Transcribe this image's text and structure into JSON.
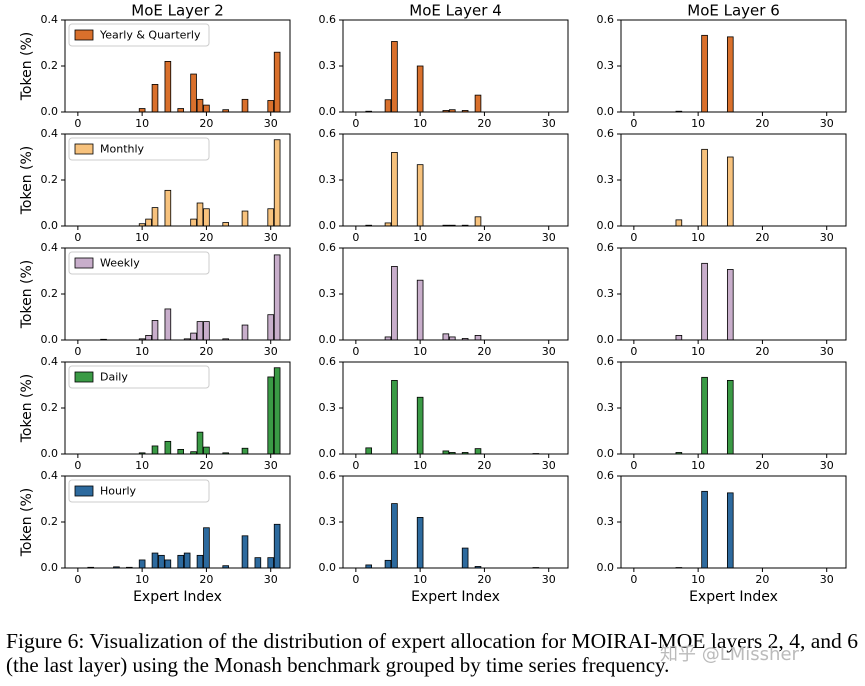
{
  "chart_data": [
    {
      "type": "bar",
      "title": "MoE Layer 2",
      "ylabel": "Token (%)",
      "x": [
        10,
        12,
        14,
        16,
        18,
        19,
        20,
        23,
        26,
        30,
        31
      ],
      "series": [
        {
          "name": "Yearly & Quarterly",
          "color": "#d9702c",
          "values": [
            0.015,
            0.12,
            0.22,
            0.015,
            0.165,
            0.055,
            0.03,
            0.01,
            0.055,
            0.05,
            0.26
          ]
        }
      ],
      "xlim": [
        -2,
        33
      ],
      "xticks": [
        0,
        10,
        20,
        30
      ],
      "ylim": [
        0,
        0.4
      ],
      "yticks": [
        {
          "value": 0,
          "label": "0.0"
        },
        0.2,
        0.4
      ]
    },
    {
      "type": "bar",
      "title": "MoE Layer 4",
      "x": [
        2,
        5,
        6,
        10,
        14,
        15,
        17,
        19
      ],
      "series": [
        {
          "color": "#d9702c",
          "values": [
            0.005,
            0.08,
            0.46,
            0.3,
            0.01,
            0.015,
            0.01,
            0.11
          ]
        }
      ],
      "xlim": [
        -2,
        33
      ],
      "xticks": [
        0,
        10,
        20,
        30
      ],
      "ylim": [
        0,
        0.6
      ],
      "yticks": [
        {
          "value": 0,
          "label": "0.0"
        },
        0.3,
        0.6
      ]
    },
    {
      "type": "bar",
      "title": "MoE Layer 6",
      "x": [
        7,
        11,
        15
      ],
      "series": [
        {
          "color": "#d9702c",
          "values": [
            0.005,
            0.5,
            0.49
          ]
        }
      ],
      "xlim": [
        -2,
        33
      ],
      "xticks": [
        0,
        10,
        20,
        30
      ],
      "ylim": [
        0,
        0.6
      ],
      "yticks": [
        {
          "value": 0,
          "label": "0.0"
        },
        0.3,
        0.6
      ]
    },
    {
      "type": "bar",
      "ylabel": "Token (%)",
      "x": [
        10,
        11,
        12,
        14,
        18,
        19,
        20,
        23,
        26,
        30,
        31
      ],
      "series": [
        {
          "name": "Monthly",
          "color": "#f7c27d",
          "values": [
            0.01,
            0.03,
            0.08,
            0.155,
            0.03,
            0.1,
            0.075,
            0.015,
            0.065,
            0.075,
            0.375
          ]
        }
      ],
      "xlim": [
        -2,
        33
      ],
      "xticks": [
        0,
        10,
        20,
        30
      ],
      "ylim": [
        0,
        0.4
      ],
      "yticks": [
        {
          "value": 0,
          "label": "0.0"
        },
        0.2,
        0.4
      ]
    },
    {
      "type": "bar",
      "x": [
        2,
        5,
        6,
        10,
        14,
        15,
        17,
        19
      ],
      "series": [
        {
          "color": "#f7c27d",
          "values": [
            0.005,
            0.02,
            0.48,
            0.4,
            0.005,
            0.005,
            0.005,
            0.06
          ]
        }
      ],
      "xlim": [
        -2,
        33
      ],
      "xticks": [
        0,
        10,
        20,
        30
      ],
      "ylim": [
        0,
        0.6
      ],
      "yticks": [
        {
          "value": 0,
          "label": "0.0"
        },
        0.3,
        0.6
      ]
    },
    {
      "type": "bar",
      "x": [
        7,
        11,
        15
      ],
      "series": [
        {
          "color": "#f7c27d",
          "values": [
            0.04,
            0.5,
            0.45
          ]
        }
      ],
      "xlim": [
        -2,
        33
      ],
      "xticks": [
        0,
        10,
        20,
        30
      ],
      "ylim": [
        0,
        0.6
      ],
      "yticks": [
        {
          "value": 0,
          "label": "0.0"
        },
        0.3,
        0.6
      ]
    },
    {
      "type": "bar",
      "ylabel": "Token (%)",
      "x": [
        4,
        10,
        11,
        12,
        14,
        17,
        18,
        19,
        20,
        23,
        26,
        30,
        31
      ],
      "series": [
        {
          "name": "Weekly",
          "color": "#c8aecb",
          "values": [
            0.003,
            0.005,
            0.02,
            0.085,
            0.135,
            0.005,
            0.03,
            0.08,
            0.08,
            0.005,
            0.065,
            0.11,
            0.37
          ]
        }
      ],
      "xlim": [
        -2,
        33
      ],
      "xticks": [
        0,
        10,
        20,
        30
      ],
      "ylim": [
        0,
        0.4
      ],
      "yticks": [
        {
          "value": 0,
          "label": "0.0"
        },
        0.2,
        0.4
      ]
    },
    {
      "type": "bar",
      "x": [
        5,
        6,
        10,
        14,
        15,
        17,
        19
      ],
      "series": [
        {
          "color": "#c8aecb",
          "values": [
            0.02,
            0.48,
            0.39,
            0.04,
            0.02,
            0.01,
            0.03
          ]
        }
      ],
      "xlim": [
        -2,
        33
      ],
      "xticks": [
        0,
        10,
        20,
        30
      ],
      "ylim": [
        0,
        0.6
      ],
      "yticks": [
        {
          "value": 0,
          "label": "0.0"
        },
        0.3,
        0.6
      ]
    },
    {
      "type": "bar",
      "x": [
        7,
        11,
        15
      ],
      "series": [
        {
          "color": "#c8aecb",
          "values": [
            0.03,
            0.5,
            0.46
          ]
        }
      ],
      "xlim": [
        -2,
        33
      ],
      "xticks": [
        0,
        10,
        20,
        30
      ],
      "ylim": [
        0,
        0.6
      ],
      "yticks": [
        {
          "value": 0,
          "label": "0.0"
        },
        0.3,
        0.6
      ]
    },
    {
      "type": "bar",
      "ylabel": "Token (%)",
      "x": [
        10,
        12,
        14,
        16,
        18,
        19,
        20,
        23,
        26,
        30,
        31
      ],
      "series": [
        {
          "name": "Daily",
          "color": "#3a9a45",
          "values": [
            0.005,
            0.035,
            0.055,
            0.02,
            0.01,
            0.095,
            0.03,
            0.005,
            0.025,
            0.335,
            0.375
          ]
        }
      ],
      "xlim": [
        -2,
        33
      ],
      "xticks": [
        0,
        10,
        20,
        30
      ],
      "ylim": [
        0,
        0.4
      ],
      "yticks": [
        {
          "value": 0,
          "label": "0.0"
        },
        0.2,
        0.4
      ]
    },
    {
      "type": "bar",
      "x": [
        2,
        6,
        10,
        14,
        15,
        17,
        19,
        28
      ],
      "series": [
        {
          "color": "#3a9a45",
          "values": [
            0.04,
            0.48,
            0.37,
            0.02,
            0.01,
            0.01,
            0.035,
            0.003
          ]
        }
      ],
      "xlim": [
        -2,
        33
      ],
      "xticks": [
        0,
        10,
        20,
        30
      ],
      "ylim": [
        0,
        0.6
      ],
      "yticks": [
        {
          "value": 0,
          "label": "0.0"
        },
        0.3,
        0.6
      ]
    },
    {
      "type": "bar",
      "x": [
        7,
        11,
        15
      ],
      "series": [
        {
          "color": "#3a9a45",
          "values": [
            0.01,
            0.5,
            0.48
          ]
        }
      ],
      "xlim": [
        -2,
        33
      ],
      "xticks": [
        0,
        10,
        20,
        30
      ],
      "ylim": [
        0,
        0.6
      ],
      "yticks": [
        {
          "value": 0,
          "label": "0.0"
        },
        0.3,
        0.6
      ]
    },
    {
      "type": "bar",
      "ylabel": "Token (%)",
      "xlabel": "Expert Index",
      "x": [
        2,
        6,
        8,
        10,
        12,
        13,
        14,
        16,
        17,
        19,
        20,
        23,
        26,
        28,
        30,
        31
      ],
      "series": [
        {
          "name": "Hourly",
          "color": "#2d6a9e",
          "values": [
            0.003,
            0.005,
            0.003,
            0.035,
            0.065,
            0.055,
            0.035,
            0.055,
            0.065,
            0.055,
            0.175,
            0.01,
            0.14,
            0.045,
            0.045,
            0.19
          ]
        }
      ],
      "xlim": [
        -2,
        33
      ],
      "xticks": [
        0,
        10,
        20,
        30
      ],
      "ylim": [
        0,
        0.4
      ],
      "yticks": [
        {
          "value": 0,
          "label": "0.0"
        },
        0.2,
        0.4
      ]
    },
    {
      "type": "bar",
      "xlabel": "Expert Index",
      "x": [
        2,
        5,
        6,
        10,
        17,
        19,
        28
      ],
      "series": [
        {
          "color": "#2d6a9e",
          "values": [
            0.02,
            0.05,
            0.42,
            0.33,
            0.13,
            0.01,
            0.003
          ]
        }
      ],
      "xlim": [
        -2,
        33
      ],
      "xticks": [
        0,
        10,
        20,
        30
      ],
      "ylim": [
        0,
        0.6
      ],
      "yticks": [
        {
          "value": 0,
          "label": "0.0"
        },
        0.3,
        0.6
      ]
    },
    {
      "type": "bar",
      "xlabel": "Expert Index",
      "x": [
        7,
        11,
        15
      ],
      "series": [
        {
          "color": "#2d6a9e",
          "values": [
            0.003,
            0.5,
            0.49
          ]
        }
      ],
      "xlim": [
        -2,
        33
      ],
      "xticks": [
        0,
        10,
        20,
        30
      ],
      "ylim": [
        0,
        0.6
      ],
      "yticks": [
        {
          "value": 0,
          "label": "0.0"
        },
        0.3,
        0.6
      ]
    }
  ],
  "caption": [
    "Figure 6: Visualization of the distribution of expert allocation for MOIRAI-MOE layers 2, 4, and 6",
    "(the last layer) using the Monash benchmark grouped by time series frequency."
  ],
  "watermark": "知乎 @LMissher"
}
